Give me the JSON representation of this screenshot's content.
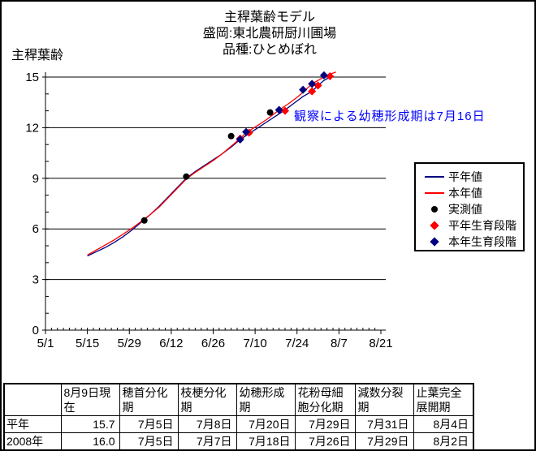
{
  "chart": {
    "title_lines": [
      "主稈葉齢モデル",
      "盛岡:東北農研厨川圃場",
      "品種:ひとめぼれ"
    ]
  },
  "chart_data": {
    "type": "line",
    "title": "主稈葉齢モデル 盛岡:東北農研厨川圃場 品種:ひとめぼれ",
    "xlabel": "",
    "ylabel": "主稈葉齢",
    "x_ticks": [
      "5/1",
      "5/15",
      "5/29",
      "6/12",
      "6/26",
      "7/10",
      "7/24",
      "8/7",
      "8/21"
    ],
    "y_ticks": [
      0,
      3,
      6,
      9,
      12,
      15
    ],
    "ylim": [
      0,
      15
    ],
    "grid": "horizontal",
    "legend_position": "right",
    "annotation": {
      "text": "観察による幼穂形成期は7月16日",
      "color": "#0000FF",
      "date_ref": "7/16"
    },
    "series": [
      {
        "name": "平年値",
        "type": "line",
        "color": "#000080",
        "points": [
          [
            "5/15",
            4.4
          ],
          [
            "5/18",
            4.65
          ],
          [
            "5/21",
            4.9
          ],
          [
            "5/24",
            5.2
          ],
          [
            "5/27",
            5.55
          ],
          [
            "5/30",
            5.95
          ],
          [
            "6/2",
            6.4
          ],
          [
            "6/5",
            6.85
          ],
          [
            "6/8",
            7.35
          ],
          [
            "6/11",
            7.9
          ],
          [
            "6/14",
            8.45
          ],
          [
            "6/17",
            9.0
          ],
          [
            "6/20",
            9.4
          ],
          [
            "6/23",
            9.75
          ],
          [
            "6/26",
            10.1
          ],
          [
            "6/29",
            10.45
          ],
          [
            "7/2",
            10.85
          ],
          [
            "7/5",
            11.3
          ],
          [
            "7/8",
            11.65
          ],
          [
            "7/11",
            12.0
          ],
          [
            "7/14",
            12.35
          ],
          [
            "7/17",
            12.7
          ],
          [
            "7/20",
            13.05
          ],
          [
            "7/23",
            13.45
          ],
          [
            "7/26",
            13.85
          ],
          [
            "7/29",
            14.15
          ],
          [
            "7/31",
            14.5
          ],
          [
            "8/2",
            14.8
          ],
          [
            "8/4",
            15.0
          ],
          [
            "8/5",
            15.1
          ]
        ]
      },
      {
        "name": "本年値",
        "type": "line",
        "color": "#FF0000",
        "points": [
          [
            "5/15",
            4.45
          ],
          [
            "5/18",
            4.75
          ],
          [
            "5/21",
            5.05
          ],
          [
            "5/24",
            5.35
          ],
          [
            "5/27",
            5.7
          ],
          [
            "5/30",
            6.05
          ],
          [
            "6/2",
            6.45
          ],
          [
            "6/5",
            6.85
          ],
          [
            "6/8",
            7.3
          ],
          [
            "6/11",
            7.85
          ],
          [
            "6/14",
            8.4
          ],
          [
            "6/17",
            8.95
          ],
          [
            "6/20",
            9.35
          ],
          [
            "6/23",
            9.7
          ],
          [
            "6/26",
            10.05
          ],
          [
            "6/29",
            10.45
          ],
          [
            "7/2",
            10.9
          ],
          [
            "7/5",
            11.35
          ],
          [
            "7/7",
            11.7
          ],
          [
            "7/11",
            12.15
          ],
          [
            "7/14",
            12.5
          ],
          [
            "7/18",
            13.05
          ],
          [
            "7/21",
            13.4
          ],
          [
            "7/24",
            13.8
          ],
          [
            "7/26",
            14.1
          ],
          [
            "7/29",
            14.6
          ],
          [
            "8/1",
            14.9
          ],
          [
            "8/3",
            15.1
          ],
          [
            "8/6",
            15.3
          ]
        ]
      },
      {
        "name": "実測値",
        "type": "scatter-circle",
        "color": "#000000",
        "points": [
          [
            "6/3",
            6.5
          ],
          [
            "6/17",
            9.1
          ],
          [
            "7/2",
            11.5
          ],
          [
            "7/15",
            12.9
          ]
        ]
      },
      {
        "name": "平年生育段階",
        "type": "scatter-diamond",
        "color": "#FF0000",
        "points": [
          [
            "7/5",
            11.35
          ],
          [
            "7/8",
            11.7
          ],
          [
            "7/20",
            13.0
          ],
          [
            "7/29",
            14.15
          ],
          [
            "7/31",
            14.5
          ],
          [
            "8/4",
            15.05
          ]
        ]
      },
      {
        "name": "本年生育段階",
        "type": "scatter-diamond",
        "color": "#000080",
        "points": [
          [
            "7/5",
            11.3
          ],
          [
            "7/7",
            11.75
          ],
          [
            "7/18",
            13.05
          ],
          [
            "7/26",
            14.25
          ],
          [
            "7/29",
            14.6
          ],
          [
            "8/2",
            15.1
          ]
        ]
      }
    ]
  },
  "table": {
    "headers": [
      "",
      "8月9日現在",
      "穂首分化期",
      "枝梗分化期",
      "幼穂形成期",
      "花粉母細胞分化期",
      "減数分裂期",
      "止葉完全展開期"
    ],
    "rows": [
      {
        "label": "平年",
        "values": [
          "15.7",
          "7月5日",
          "7月8日",
          "7月20日",
          "7月29日",
          "7月31日",
          "8月4日"
        ]
      },
      {
        "label": "2008年",
        "values": [
          "16.0",
          "7月5日",
          "7月7日",
          "7月18日",
          "7月26日",
          "7月29日",
          "8月2日"
        ]
      }
    ]
  }
}
